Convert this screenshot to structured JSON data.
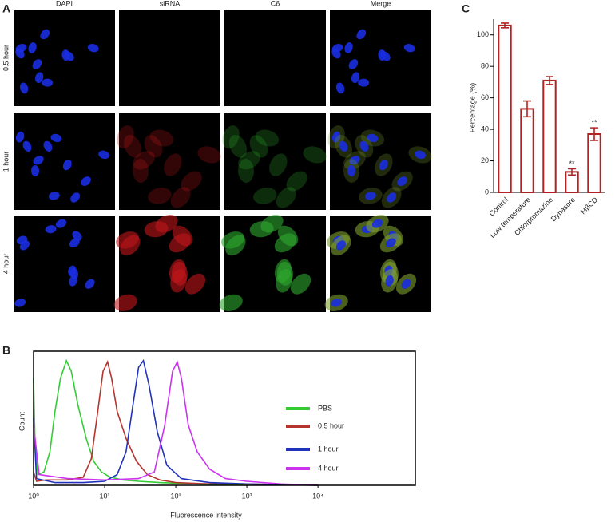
{
  "panel_a": {
    "label": "A",
    "columns": [
      "DAPI",
      "siRNA",
      "C6",
      "Merge"
    ],
    "rows": [
      "0.5 hour",
      "1 hour",
      "4 hour"
    ]
  },
  "chart_data": [
    {
      "type": "line",
      "panel_label": "B",
      "x_label": "Fluorescence intensity",
      "y_label": "Count",
      "log_x": true,
      "xlim": [
        1,
        234000
      ],
      "xticks": [
        {
          "value": 1,
          "label": "10⁰"
        },
        {
          "value": 10,
          "label": "10¹"
        },
        {
          "value": 100,
          "label": "10²"
        },
        {
          "value": 1000,
          "label": "10³"
        },
        {
          "value": 10000,
          "label": "10⁴"
        }
      ],
      "ylim": [
        0,
        100
      ],
      "legend": "right",
      "series": [
        {
          "name": "PBS",
          "color": "#33cc33",
          "x": [
            1,
            1.05,
            1.15,
            1.4,
            1.7,
            2.0,
            2.4,
            2.9,
            3.4,
            4.2,
            5.5,
            7,
            9,
            12,
            18,
            30,
            60,
            200,
            1000
          ],
          "values": [
            80,
            30,
            8,
            10,
            25,
            55,
            80,
            93,
            85,
            60,
            35,
            18,
            10,
            6,
            4,
            3,
            2,
            1,
            0
          ]
        },
        {
          "name": "0.5 hour",
          "color": "#b5352e",
          "x": [
            1,
            1.1,
            1.5,
            3,
            5,
            6.5,
            8,
            9.5,
            11,
            12.5,
            15,
            20,
            28,
            40,
            60,
            100,
            300,
            1000,
            10000
          ],
          "values": [
            10,
            3,
            4,
            4,
            6,
            20,
            55,
            85,
            92,
            80,
            55,
            35,
            18,
            8,
            4,
            2,
            1,
            1,
            0
          ]
        },
        {
          "name": "1 hour",
          "color": "#2233bb",
          "x": [
            1,
            1.1,
            2,
            5,
            10,
            15,
            20,
            25,
            30,
            35,
            42,
            55,
            75,
            120,
            300,
            1000,
            10000
          ],
          "values": [
            50,
            5,
            2,
            2,
            3,
            8,
            25,
            60,
            88,
            93,
            75,
            40,
            15,
            5,
            2,
            1,
            0
          ]
        },
        {
          "name": "4 hour",
          "color": "#cc33ee",
          "x": [
            1,
            1.2,
            3,
            10,
            30,
            50,
            70,
            90,
            105,
            120,
            150,
            200,
            300,
            500,
            1000,
            3000,
            10000
          ],
          "values": [
            45,
            8,
            5,
            4,
            5,
            10,
            45,
            85,
            92,
            80,
            45,
            25,
            12,
            5,
            3,
            1,
            0
          ]
        }
      ]
    },
    {
      "type": "bar",
      "panel_label": "C",
      "y_label": "Percentage (%)",
      "categories": [
        "Control",
        "Low temperature",
        "Chlorpromazine",
        "Dynasore",
        "MβCD"
      ],
      "values": [
        106,
        53,
        71,
        13,
        37
      ],
      "errors": [
        1.5,
        5,
        2.5,
        2,
        4
      ],
      "significance": [
        null,
        null,
        null,
        "**",
        "**"
      ],
      "color": "#b22222",
      "ylim": [
        0,
        110
      ],
      "yticks": [
        0,
        20,
        40,
        60,
        80,
        100
      ]
    }
  ]
}
